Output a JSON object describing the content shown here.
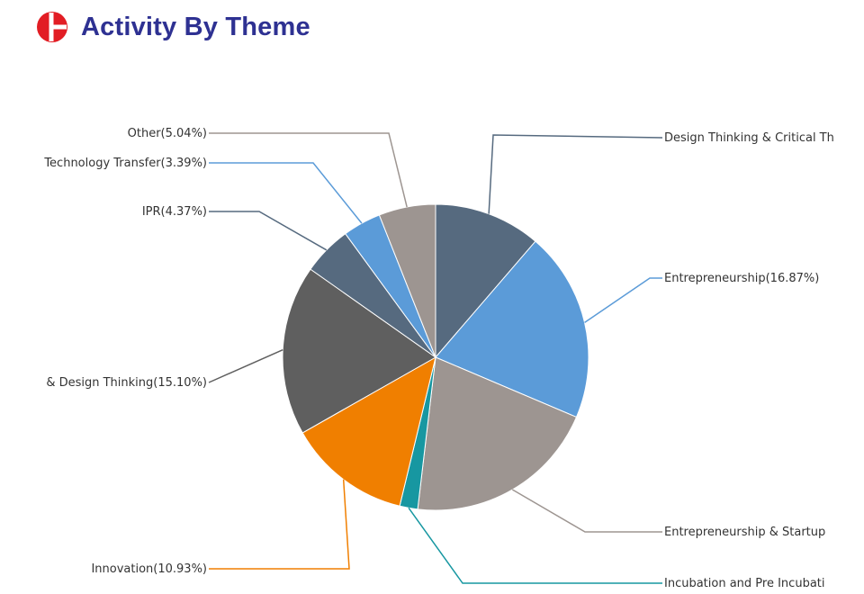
{
  "header": {
    "title": "Activity By Theme",
    "logo_icon": "brand-logo-icon",
    "logo_color": "#e21d24"
  },
  "chart_data": {
    "type": "pie",
    "title": "Activity By Theme",
    "start_angle_deg": 0,
    "direction": "clockwise",
    "slices": [
      {
        "label": "Design Thinking & Critical Th",
        "value": 9.5,
        "color": "#566a7f",
        "shown_label": "Design Thinking & Critical Th"
      },
      {
        "label": "Entrepreneurship",
        "value": 16.87,
        "color": "#5b9bd8",
        "shown_label": "Entrepreneurship(16.87%)"
      },
      {
        "label": "Entrepreneurship & Startup",
        "value": 17.2,
        "color": "#9d9591",
        "shown_label": "Entrepreneurship & Startup"
      },
      {
        "label": "Incubation and Pre Incubati",
        "value": 1.6,
        "color": "#1797a1",
        "shown_label": "Incubation and Pre Incubati"
      },
      {
        "label": "Innovation",
        "value": 10.93,
        "color": "#f07f00",
        "shown_label": "Innovation(10.93%)"
      },
      {
        "label": "& Design Thinking",
        "value": 15.1,
        "color": "#5f5f5f",
        "shown_label": "& Design Thinking(15.10%)"
      },
      {
        "label": "IPR",
        "value": 4.37,
        "color": "#566a7f",
        "shown_label": "IPR(4.37%)"
      },
      {
        "label": "Technology Transfer",
        "value": 3.39,
        "color": "#5b9bd8",
        "shown_label": "Technology Transfer(3.39%)"
      },
      {
        "label": "Other",
        "value": 5.04,
        "color": "#9d9591",
        "shown_label": "Other(5.04%)"
      }
    ],
    "legend": "none"
  }
}
